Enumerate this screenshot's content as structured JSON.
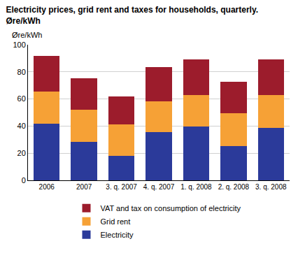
{
  "chart_data": {
    "type": "bar",
    "stacked": true,
    "title": "Electricity prices, grid rent and taxes for households, quarterly.",
    "subtitle": "Øre/kWh",
    "y_label": "Øre/kWh",
    "categories": [
      "2006",
      "2007",
      "3. q. 2007",
      "4. q. 2007",
      "1. q. 2008",
      "2. q. 2008",
      "3. q. 2008"
    ],
    "series": [
      {
        "name": "Electricity",
        "color": "#2b3a9a",
        "values": [
          42,
          28.5,
          18,
          35.5,
          39.5,
          25.5,
          38.8
        ]
      },
      {
        "name": "Grid rent",
        "color": "#f6a136",
        "values": [
          23.5,
          23.5,
          23,
          23,
          23.5,
          24,
          24.2
        ]
      },
      {
        "name": "VAT and tax on consumption of electricity",
        "color": "#9c1c2c",
        "values": [
          26.5,
          23.5,
          21,
          25,
          26,
          23,
          26
        ]
      }
    ],
    "ylim": [
      0,
      100
    ],
    "yticks": [
      0,
      20,
      40,
      60,
      80,
      100
    ],
    "grid": true,
    "legend": "bottom"
  }
}
